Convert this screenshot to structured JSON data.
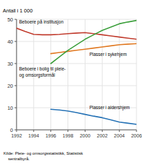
{
  "chart_data": {
    "type": "line",
    "ylabel": "Antall i 1 000",
    "source": "Kilde: Pleie- og omsorgsstatistikk, Statistisk\n    sentralbyrå.",
    "x": [
      1992,
      1993,
      1994,
      1995,
      1996,
      1997,
      1998,
      1999,
      2000,
      2001,
      2002,
      2003,
      2004,
      2005,
      2006
    ],
    "series": [
      {
        "color": "#c0392b",
        "values": [
          46.0,
          44.5,
          43.2,
          43.0,
          43.0,
          43.2,
          43.5,
          43.8,
          44.0,
          43.5,
          43.0,
          42.5,
          42.0,
          41.5,
          41.0
        ]
      },
      {
        "color": "#e07820",
        "values": [
          null,
          null,
          null,
          null,
          34.5,
          35.0,
          35.5,
          36.0,
          36.5,
          37.0,
          37.5,
          38.0,
          38.5,
          38.8,
          39.0
        ]
      },
      {
        "color": "#3a9e3a",
        "values": [
          null,
          null,
          null,
          null,
          30.0,
          33.0,
          36.0,
          38.5,
          41.0,
          43.0,
          45.0,
          46.5,
          48.0,
          48.8,
          49.5
        ]
      },
      {
        "color": "#2471b5",
        "values": [
          null,
          null,
          null,
          null,
          9.3,
          9.0,
          8.5,
          7.8,
          7.0,
          6.2,
          5.5,
          4.5,
          3.5,
          3.0,
          2.5
        ]
      }
    ],
    "annotations": [
      {
        "text": "Beboere på institusjon",
        "x": 1992.3,
        "y": 47.5
      },
      {
        "text": "Plasser i sykehjem",
        "x": 2000.5,
        "y": 35.2
      },
      {
        "text": "Beboere i bolig til pleie-\nog omsorgsformål",
        "x": 1992.3,
        "y": 28.5
      },
      {
        "text": "Plasser i aldershjem",
        "x": 2000.5,
        "y": 8.8
      }
    ],
    "xlim": [
      1992,
      2006
    ],
    "ylim": [
      0,
      50
    ],
    "xticks": [
      1992,
      1994,
      1996,
      1998,
      2000,
      2002,
      2004,
      2006
    ],
    "yticks": [
      0,
      10,
      20,
      30,
      40,
      50
    ],
    "grid": true
  }
}
